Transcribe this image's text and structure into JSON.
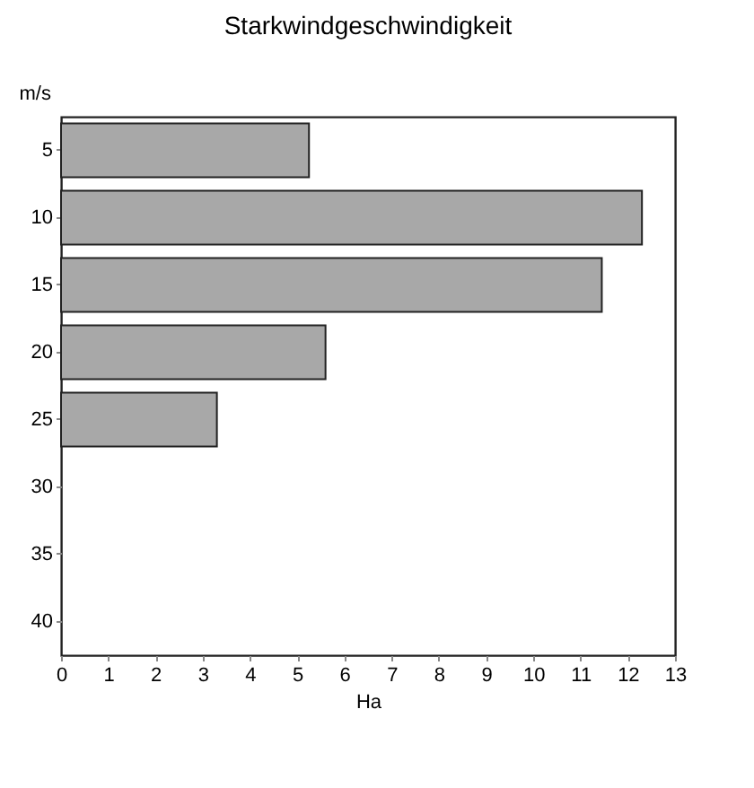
{
  "chart_data": {
    "type": "bar",
    "orientation": "horizontal",
    "title": "Starkwindgeschwindigkeit",
    "xlabel": "Ha",
    "ylabel": "m/s",
    "categories": [
      "5",
      "10",
      "15",
      "20",
      "25",
      "30",
      "35",
      "40"
    ],
    "values": [
      5.25,
      12.3,
      11.45,
      5.6,
      3.3,
      null,
      null,
      null
    ],
    "color": "#a8a8a8",
    "xlim": [
      0,
      13
    ],
    "xticks": [
      0,
      1,
      2,
      3,
      4,
      5,
      6,
      7,
      8,
      9,
      10,
      11,
      12,
      13
    ],
    "grid": false
  }
}
